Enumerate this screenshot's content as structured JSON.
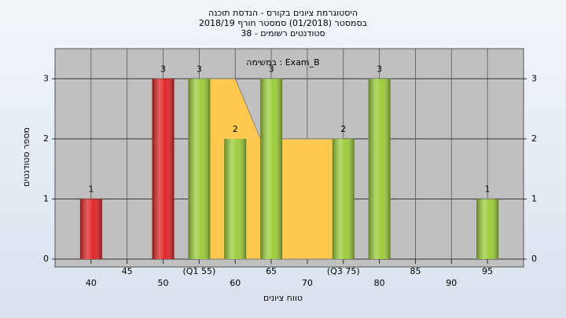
{
  "chart_data": {
    "type": "bar",
    "title": [
      "היסטוגרמת ציונים בקורס - הנדסת תוכנה",
      "בסמסטר  (01/2018)  סמסטר חורף 2018/19",
      "38 - סטודנטים רשומים"
    ],
    "annotation": "במשימה : Exam_B",
    "x_label": "טווח ציונים",
    "y_label": "מספר סטודנטים",
    "x": [
      40,
      50,
      55,
      60,
      65,
      75,
      80,
      95
    ],
    "values": [
      1,
      3,
      3,
      2,
      3,
      2,
      3,
      1
    ],
    "colors": [
      "#e02828",
      "#e02828",
      "#9ccc3c",
      "#9ccc3c",
      "#9ccc3c",
      "#9ccc3c",
      "#9ccc3c",
      "#9ccc3c"
    ],
    "area": {
      "x": [
        55,
        60,
        63.5,
        75
      ],
      "values": [
        3,
        3,
        2,
        2
      ],
      "color": "#ffc850"
    },
    "xlim": [
      35,
      100
    ],
    "xticks": [
      40,
      45,
      50,
      {
        "value": 55,
        "label": "(Q1 55)"
      },
      60,
      65,
      70,
      {
        "value": 75,
        "label": "(Q3 75)"
      },
      80,
      85,
      90,
      95
    ],
    "ylim": [
      0,
      3.5
    ],
    "yticks": [
      0,
      1,
      2,
      3
    ],
    "grid": true
  }
}
